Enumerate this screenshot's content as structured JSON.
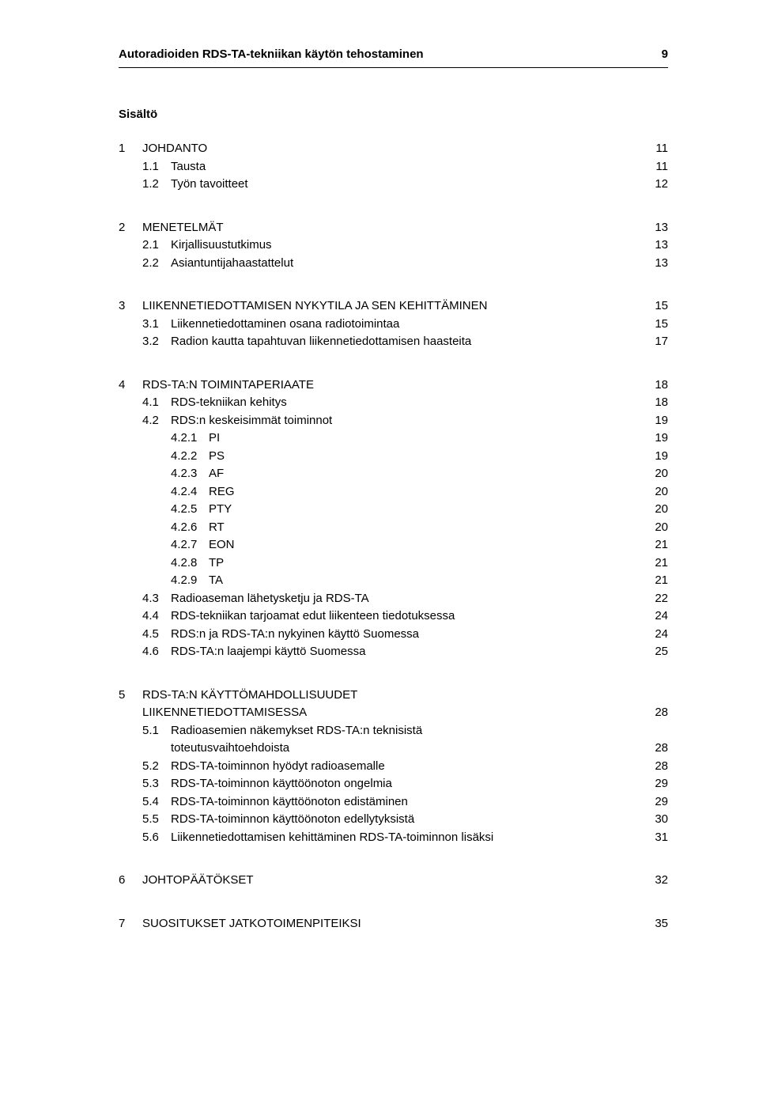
{
  "header": {
    "title": "Autoradioiden RDS-TA-tekniikan käytön tehostaminen",
    "page_num": "9"
  },
  "toc_title": "Sisältö",
  "toc": [
    {
      "type": "lvl1",
      "num": "1",
      "label": "JOHDANTO",
      "page": "11"
    },
    {
      "type": "lvl2",
      "num": "1.1",
      "label": "Tausta",
      "page": "11"
    },
    {
      "type": "lvl2",
      "num": "1.2",
      "label": "Työn tavoitteet",
      "page": "12"
    },
    {
      "type": "gap"
    },
    {
      "type": "lvl1",
      "num": "2",
      "label": "MENETELMÄT",
      "page": "13"
    },
    {
      "type": "lvl2",
      "num": "2.1",
      "label": "Kirjallisuustutkimus",
      "page": "13"
    },
    {
      "type": "lvl2",
      "num": "2.2",
      "label": "Asiantuntijahaastattelut",
      "page": "13"
    },
    {
      "type": "gap"
    },
    {
      "type": "lvl1",
      "num": "3",
      "label": "LIIKENNETIEDOTTAMISEN NYKYTILA JA SEN KEHITTÄMINEN",
      "page": "15"
    },
    {
      "type": "lvl2",
      "num": "3.1",
      "label": "Liikennetiedottaminen osana radiotoimintaa",
      "page": "15"
    },
    {
      "type": "lvl2",
      "num": "3.2",
      "label": "Radion kautta tapahtuvan liikennetiedottamisen haasteita",
      "page": "17"
    },
    {
      "type": "gap"
    },
    {
      "type": "lvl1",
      "num": "4",
      "label": "RDS-TA:N TOIMINTAPERIAATE",
      "page": "18"
    },
    {
      "type": "lvl2",
      "num": "4.1",
      "label": "RDS-tekniikan kehitys",
      "page": "18"
    },
    {
      "type": "lvl2",
      "num": "4.2",
      "label": "RDS:n keskeisimmät toiminnot",
      "page": "19"
    },
    {
      "type": "lvl2-sub",
      "num": "4.2.1",
      "label": "PI",
      "page": "19"
    },
    {
      "type": "lvl2-sub",
      "num": "4.2.2",
      "label": "PS",
      "page": "19"
    },
    {
      "type": "lvl2-sub",
      "num": "4.2.3",
      "label": "AF",
      "page": "20"
    },
    {
      "type": "lvl2-sub",
      "num": "4.2.4",
      "label": "REG",
      "page": "20"
    },
    {
      "type": "lvl2-sub",
      "num": "4.2.5",
      "label": "PTY",
      "page": "20"
    },
    {
      "type": "lvl2-sub",
      "num": "4.2.6",
      "label": "RT",
      "page": "20"
    },
    {
      "type": "lvl2-sub",
      "num": "4.2.7",
      "label": "EON",
      "page": "21"
    },
    {
      "type": "lvl2-sub",
      "num": "4.2.8",
      "label": "TP",
      "page": "21"
    },
    {
      "type": "lvl2-sub",
      "num": "4.2.9",
      "label": "TA",
      "page": "21"
    },
    {
      "type": "lvl2",
      "num": "4.3",
      "label": "Radioaseman lähetysketju ja RDS-TA",
      "page": "22"
    },
    {
      "type": "lvl2",
      "num": "4.4",
      "label": "RDS-tekniikan tarjoamat edut liikenteen tiedotuksessa",
      "page": "24"
    },
    {
      "type": "lvl2",
      "num": "4.5",
      "label": "RDS:n ja RDS-TA:n nykyinen käyttö Suomessa",
      "page": "24"
    },
    {
      "type": "lvl2",
      "num": "4.6",
      "label": "RDS-TA:n laajempi käyttö Suomessa",
      "page": "25"
    },
    {
      "type": "gap"
    },
    {
      "type": "lvl1-multi",
      "num": "5",
      "label1": "RDS-TA:N KÄYTTÖMAHDOLLISUUDET",
      "label2": "LIIKENNETIEDOTTAMISESSA",
      "page": "28"
    },
    {
      "type": "lvl2-multi",
      "num": "5.1",
      "label1": "Radioasemien näkemykset RDS-TA:n teknisistä",
      "label2": "toteutusvaihtoehdoista",
      "page": "28"
    },
    {
      "type": "lvl2",
      "num": "5.2",
      "label": "RDS-TA-toiminnon hyödyt radioasemalle",
      "page": "28"
    },
    {
      "type": "lvl2",
      "num": "5.3",
      "label": "RDS-TA-toiminnon käyttöönoton ongelmia",
      "page": "29"
    },
    {
      "type": "lvl2",
      "num": "5.4",
      "label": "RDS-TA-toiminnon käyttöönoton edistäminen",
      "page": "29"
    },
    {
      "type": "lvl2",
      "num": "5.5",
      "label": "RDS-TA-toiminnon käyttöönoton edellytyksistä",
      "page": "30"
    },
    {
      "type": "lvl2",
      "num": "5.6",
      "label": "Liikennetiedottamisen kehittäminen RDS-TA-toiminnon lisäksi",
      "page": "31"
    },
    {
      "type": "gap"
    },
    {
      "type": "lvl1",
      "num": "6",
      "label": "JOHTOPÄÄTÖKSET",
      "page": "32"
    },
    {
      "type": "gap"
    },
    {
      "type": "lvl1",
      "num": "7",
      "label": "SUOSITUKSET JATKOTOIMENPITEIKSI",
      "page": "35"
    }
  ]
}
